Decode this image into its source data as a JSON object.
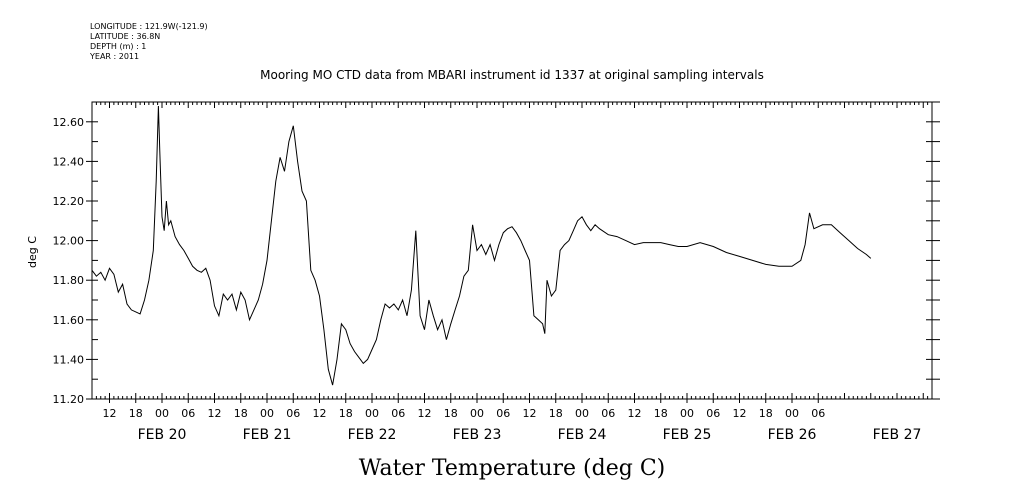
{
  "meta": {
    "longitude": "LONGITUDE : 121.9W(-121.9)",
    "latitude": "LATITUDE : 36.8N",
    "depth": "DEPTH (m) : 1",
    "year": "YEAR : 2011"
  },
  "chart_data": {
    "type": "line",
    "title": "Mooring MO CTD data from MBARI instrument id 1337 at original sampling intervals",
    "subtitle_bottom": "Water Temperature (deg C)",
    "ylabel": "deg C",
    "xlabel": "",
    "ylim": [
      11.2,
      12.7
    ],
    "yticks": [
      "11.20",
      "11.40",
      "11.60",
      "11.80",
      "12.00",
      "12.20",
      "12.40",
      "12.60"
    ],
    "xlim": [
      "2011-02-19T08:00",
      "2011-02-27T08:00"
    ],
    "hour_ticks": [
      {
        "t": "2011-02-19T12:00",
        "label": "12"
      },
      {
        "t": "2011-02-19T18:00",
        "label": "18"
      },
      {
        "t": "2011-02-20T00:00",
        "label": "00"
      },
      {
        "t": "2011-02-20T06:00",
        "label": "06"
      },
      {
        "t": "2011-02-20T12:00",
        "label": "12"
      },
      {
        "t": "2011-02-20T18:00",
        "label": "18"
      },
      {
        "t": "2011-02-21T00:00",
        "label": "00"
      },
      {
        "t": "2011-02-21T06:00",
        "label": "06"
      },
      {
        "t": "2011-02-21T12:00",
        "label": "12"
      },
      {
        "t": "2011-02-21T18:00",
        "label": "18"
      },
      {
        "t": "2011-02-22T00:00",
        "label": "00"
      },
      {
        "t": "2011-02-22T06:00",
        "label": "06"
      },
      {
        "t": "2011-02-22T12:00",
        "label": "12"
      },
      {
        "t": "2011-02-22T18:00",
        "label": "18"
      },
      {
        "t": "2011-02-23T00:00",
        "label": "00"
      },
      {
        "t": "2011-02-23T06:00",
        "label": "06"
      },
      {
        "t": "2011-02-23T12:00",
        "label": "12"
      },
      {
        "t": "2011-02-23T18:00",
        "label": "18"
      },
      {
        "t": "2011-02-24T00:00",
        "label": "00"
      },
      {
        "t": "2011-02-24T06:00",
        "label": "06"
      },
      {
        "t": "2011-02-24T12:00",
        "label": "12"
      },
      {
        "t": "2011-02-24T18:00",
        "label": "18"
      },
      {
        "t": "2011-02-25T00:00",
        "label": "00"
      },
      {
        "t": "2011-02-25T06:00",
        "label": "06"
      },
      {
        "t": "2011-02-25T12:00",
        "label": "12"
      },
      {
        "t": "2011-02-25T18:00",
        "label": "18"
      },
      {
        "t": "2011-02-26T00:00",
        "label": "00"
      },
      {
        "t": "2011-02-26T06:00",
        "label": "06"
      }
    ],
    "date_labels": [
      {
        "t": "2011-02-20T00:00",
        "label": "FEB 20"
      },
      {
        "t": "2011-02-21T00:00",
        "label": "FEB 21"
      },
      {
        "t": "2011-02-22T00:00",
        "label": "FEB 22"
      },
      {
        "t": "2011-02-23T00:00",
        "label": "FEB 23"
      },
      {
        "t": "2011-02-24T00:00",
        "label": "FEB 24"
      },
      {
        "t": "2011-02-25T00:00",
        "label": "FEB 25"
      },
      {
        "t": "2011-02-26T00:00",
        "label": "FEB 26"
      },
      {
        "t": "2011-02-27T00:00",
        "label": "FEB 27"
      }
    ],
    "grid": false,
    "series": [
      {
        "color": "#000000",
        "points": [
          [
            "2011-02-19T08:00",
            11.85
          ],
          [
            "2011-02-19T09:00",
            11.82
          ],
          [
            "2011-02-19T10:00",
            11.84
          ],
          [
            "2011-02-19T11:00",
            11.8
          ],
          [
            "2011-02-19T12:00",
            11.86
          ],
          [
            "2011-02-19T13:00",
            11.83
          ],
          [
            "2011-02-19T14:00",
            11.74
          ],
          [
            "2011-02-19T15:00",
            11.78
          ],
          [
            "2011-02-19T16:00",
            11.68
          ],
          [
            "2011-02-19T17:00",
            11.65
          ],
          [
            "2011-02-19T18:00",
            11.64
          ],
          [
            "2011-02-19T19:00",
            11.63
          ],
          [
            "2011-02-19T20:00",
            11.7
          ],
          [
            "2011-02-19T21:00",
            11.8
          ],
          [
            "2011-02-19T22:00",
            11.95
          ],
          [
            "2011-02-19T22:40",
            12.3
          ],
          [
            "2011-02-19T23:10",
            12.68
          ],
          [
            "2011-02-19T23:30",
            12.45
          ],
          [
            "2011-02-20T00:00",
            12.12
          ],
          [
            "2011-02-20T00:30",
            12.05
          ],
          [
            "2011-02-20T01:00",
            12.2
          ],
          [
            "2011-02-20T01:30",
            12.08
          ],
          [
            "2011-02-20T02:00",
            12.1
          ],
          [
            "2011-02-20T03:00",
            12.02
          ],
          [
            "2011-02-20T04:00",
            11.98
          ],
          [
            "2011-02-20T05:00",
            11.95
          ],
          [
            "2011-02-20T06:00",
            11.91
          ],
          [
            "2011-02-20T07:00",
            11.87
          ],
          [
            "2011-02-20T08:00",
            11.85
          ],
          [
            "2011-02-20T09:00",
            11.84
          ],
          [
            "2011-02-20T10:00",
            11.86
          ],
          [
            "2011-02-20T11:00",
            11.8
          ],
          [
            "2011-02-20T12:00",
            11.67
          ],
          [
            "2011-02-20T13:00",
            11.62
          ],
          [
            "2011-02-20T14:00",
            11.73
          ],
          [
            "2011-02-20T15:00",
            11.7
          ],
          [
            "2011-02-20T16:00",
            11.73
          ],
          [
            "2011-02-20T17:00",
            11.65
          ],
          [
            "2011-02-20T18:00",
            11.74
          ],
          [
            "2011-02-20T19:00",
            11.7
          ],
          [
            "2011-02-20T20:00",
            11.6
          ],
          [
            "2011-02-20T21:00",
            11.65
          ],
          [
            "2011-02-20T22:00",
            11.7
          ],
          [
            "2011-02-20T23:00",
            11.78
          ],
          [
            "2011-02-21T00:00",
            11.9
          ],
          [
            "2011-02-21T01:00",
            12.1
          ],
          [
            "2011-02-21T02:00",
            12.3
          ],
          [
            "2011-02-21T03:00",
            12.42
          ],
          [
            "2011-02-21T04:00",
            12.35
          ],
          [
            "2011-02-21T05:00",
            12.5
          ],
          [
            "2011-02-21T06:00",
            12.58
          ],
          [
            "2011-02-21T07:00",
            12.4
          ],
          [
            "2011-02-21T08:00",
            12.25
          ],
          [
            "2011-02-21T09:00",
            12.2
          ],
          [
            "2011-02-21T10:00",
            11.85
          ],
          [
            "2011-02-21T11:00",
            11.8
          ],
          [
            "2011-02-21T12:00",
            11.72
          ],
          [
            "2011-02-21T13:00",
            11.55
          ],
          [
            "2011-02-21T14:00",
            11.35
          ],
          [
            "2011-02-21T15:00",
            11.27
          ],
          [
            "2011-02-21T16:00",
            11.4
          ],
          [
            "2011-02-21T17:00",
            11.58
          ],
          [
            "2011-02-21T18:00",
            11.55
          ],
          [
            "2011-02-21T19:00",
            11.48
          ],
          [
            "2011-02-21T20:00",
            11.44
          ],
          [
            "2011-02-21T21:00",
            11.41
          ],
          [
            "2011-02-21T22:00",
            11.38
          ],
          [
            "2011-02-21T23:00",
            11.4
          ],
          [
            "2011-02-22T00:00",
            11.45
          ],
          [
            "2011-02-22T01:00",
            11.5
          ],
          [
            "2011-02-22T02:00",
            11.6
          ],
          [
            "2011-02-22T03:00",
            11.68
          ],
          [
            "2011-02-22T04:00",
            11.66
          ],
          [
            "2011-02-22T05:00",
            11.68
          ],
          [
            "2011-02-22T06:00",
            11.65
          ],
          [
            "2011-02-22T07:00",
            11.7
          ],
          [
            "2011-02-22T08:00",
            11.62
          ],
          [
            "2011-02-22T09:00",
            11.75
          ],
          [
            "2011-02-22T10:00",
            12.05
          ],
          [
            "2011-02-22T11:00",
            11.62
          ],
          [
            "2011-02-22T12:00",
            11.55
          ],
          [
            "2011-02-22T13:00",
            11.7
          ],
          [
            "2011-02-22T14:00",
            11.62
          ],
          [
            "2011-02-22T15:00",
            11.55
          ],
          [
            "2011-02-22T16:00",
            11.6
          ],
          [
            "2011-02-22T17:00",
            11.5
          ],
          [
            "2011-02-22T18:00",
            11.58
          ],
          [
            "2011-02-22T19:00",
            11.65
          ],
          [
            "2011-02-22T20:00",
            11.72
          ],
          [
            "2011-02-22T21:00",
            11.82
          ],
          [
            "2011-02-22T22:00",
            11.85
          ],
          [
            "2011-02-22T23:00",
            12.08
          ],
          [
            "2011-02-23T00:00",
            11.95
          ],
          [
            "2011-02-23T01:00",
            11.98
          ],
          [
            "2011-02-23T02:00",
            11.93
          ],
          [
            "2011-02-23T03:00",
            11.98
          ],
          [
            "2011-02-23T04:00",
            11.9
          ],
          [
            "2011-02-23T05:00",
            11.98
          ],
          [
            "2011-02-23T06:00",
            12.04
          ],
          [
            "2011-02-23T07:00",
            12.06
          ],
          [
            "2011-02-23T08:00",
            12.07
          ],
          [
            "2011-02-23T09:00",
            12.04
          ],
          [
            "2011-02-23T10:00",
            12.0
          ],
          [
            "2011-02-23T11:00",
            11.95
          ],
          [
            "2011-02-23T12:00",
            11.9
          ],
          [
            "2011-02-23T13:00",
            11.62
          ],
          [
            "2011-02-23T14:00",
            11.6
          ],
          [
            "2011-02-23T15:00",
            11.58
          ],
          [
            "2011-02-23T15:30",
            11.53
          ],
          [
            "2011-02-23T16:00",
            11.8
          ],
          [
            "2011-02-23T17:00",
            11.72
          ],
          [
            "2011-02-23T18:00",
            11.75
          ],
          [
            "2011-02-23T19:00",
            11.95
          ],
          [
            "2011-02-23T20:00",
            11.98
          ],
          [
            "2011-02-23T21:00",
            12.0
          ],
          [
            "2011-02-23T22:00",
            12.05
          ],
          [
            "2011-02-23T23:00",
            12.1
          ],
          [
            "2011-02-24T00:00",
            12.12
          ],
          [
            "2011-02-24T01:00",
            12.08
          ],
          [
            "2011-02-24T02:00",
            12.05
          ],
          [
            "2011-02-24T03:00",
            12.08
          ],
          [
            "2011-02-24T04:00",
            12.06
          ],
          [
            "2011-02-24T06:00",
            12.03
          ],
          [
            "2011-02-24T08:00",
            12.02
          ],
          [
            "2011-02-24T10:00",
            12.0
          ],
          [
            "2011-02-24T12:00",
            11.98
          ],
          [
            "2011-02-24T14:00",
            11.99
          ],
          [
            "2011-02-24T18:00",
            11.99
          ],
          [
            "2011-02-24T20:00",
            11.98
          ],
          [
            "2011-02-24T22:00",
            11.97
          ],
          [
            "2011-02-25T00:00",
            11.97
          ],
          [
            "2011-02-25T03:00",
            11.99
          ],
          [
            "2011-02-25T06:00",
            11.97
          ],
          [
            "2011-02-25T09:00",
            11.94
          ],
          [
            "2011-02-25T12:00",
            11.92
          ],
          [
            "2011-02-25T15:00",
            11.9
          ],
          [
            "2011-02-25T18:00",
            11.88
          ],
          [
            "2011-02-25T21:00",
            11.87
          ],
          [
            "2011-02-26T00:00",
            11.87
          ],
          [
            "2011-02-26T02:00",
            11.9
          ],
          [
            "2011-02-26T03:00",
            11.98
          ],
          [
            "2011-02-26T04:00",
            12.14
          ],
          [
            "2011-02-26T05:00",
            12.06
          ],
          [
            "2011-02-26T07:00",
            12.08
          ],
          [
            "2011-02-26T09:00",
            12.08
          ],
          [
            "2011-02-26T11:00",
            12.04
          ],
          [
            "2011-02-26T13:00",
            12.0
          ],
          [
            "2011-02-26T15:00",
            11.96
          ],
          [
            "2011-02-26T17:00",
            11.93
          ],
          [
            "2011-02-26T18:00",
            11.91
          ]
        ]
      }
    ]
  }
}
